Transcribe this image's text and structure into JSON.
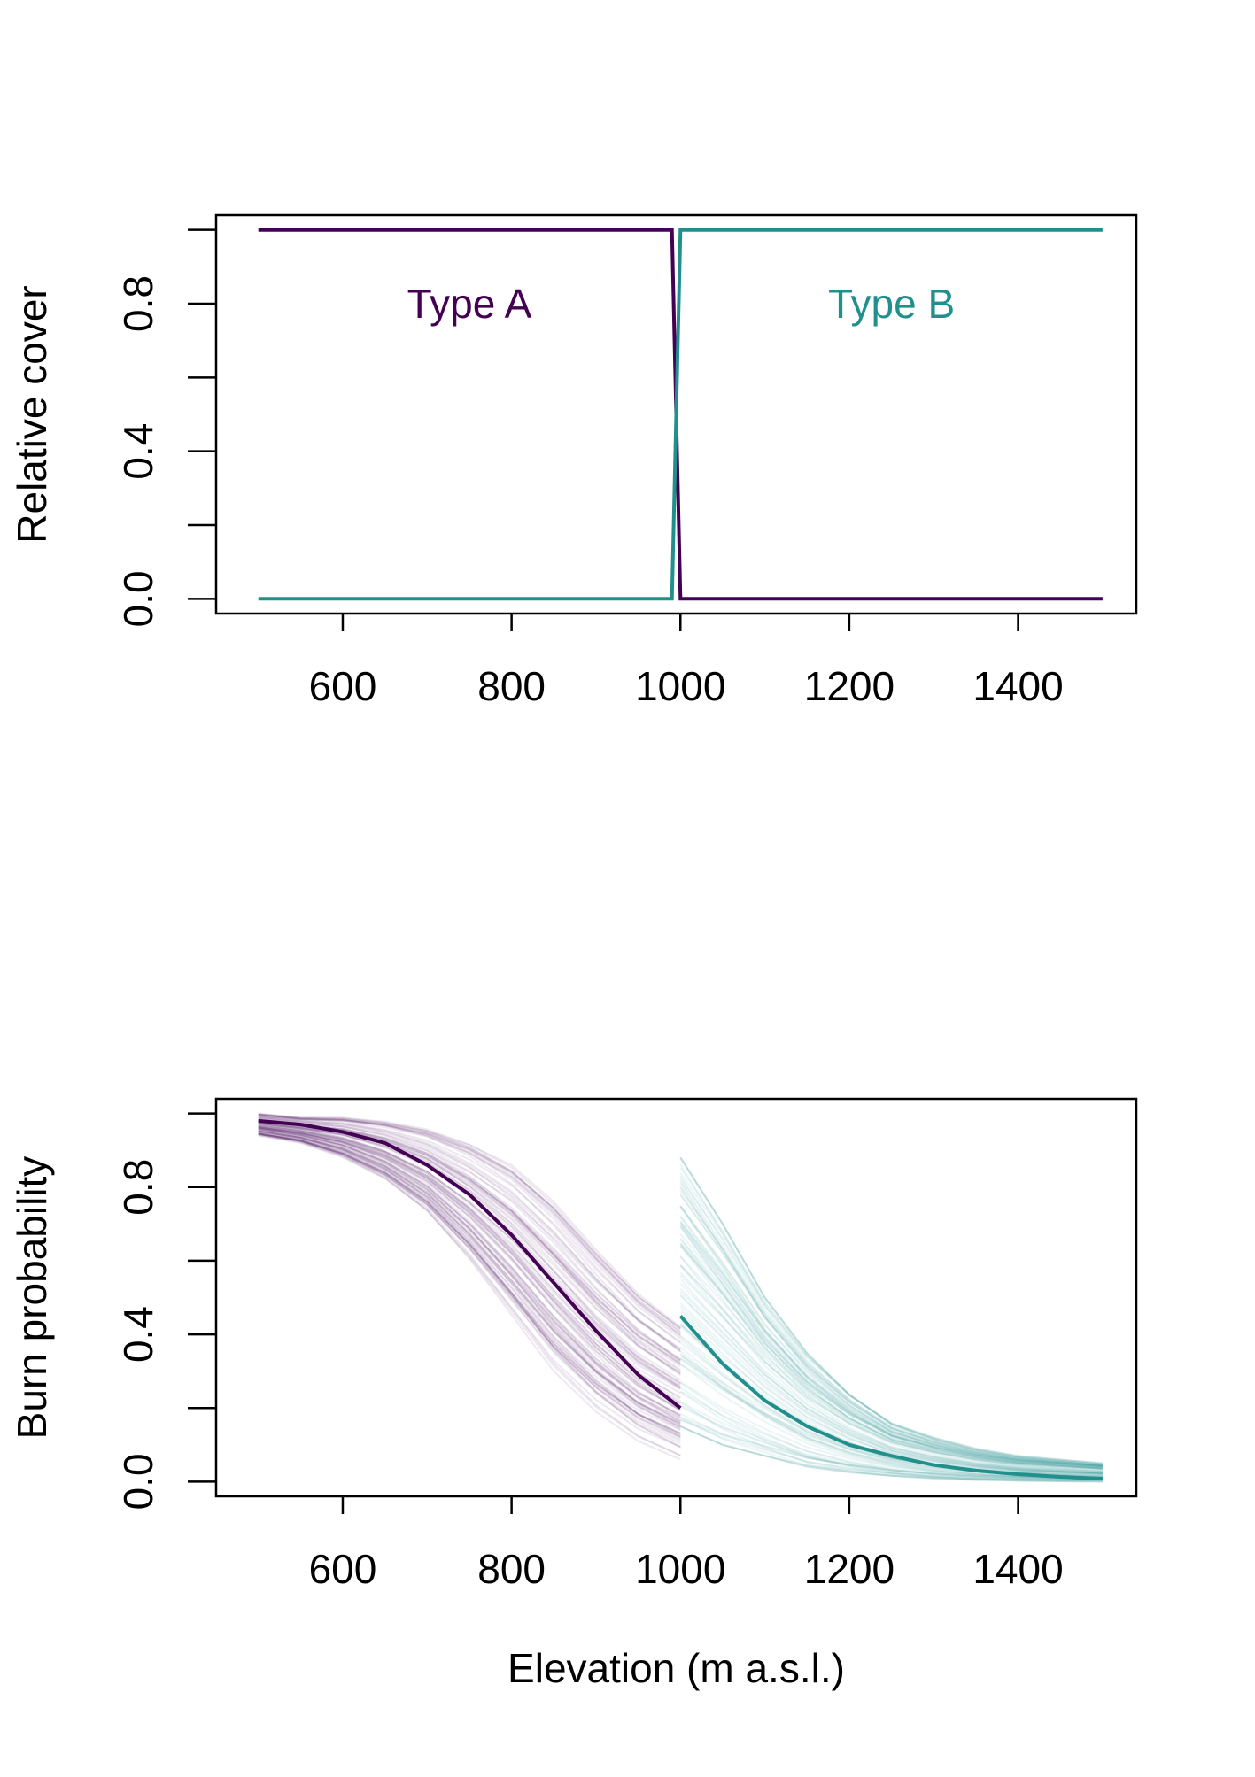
{
  "colors": {
    "type_a": "#440154",
    "type_b": "#21908C",
    "axis": "#000000"
  },
  "chart_data": [
    {
      "type": "line",
      "xlabel": "",
      "ylabel": "Relative cover",
      "xlim": [
        450,
        1540
      ],
      "ylim": [
        -0.04,
        1.04
      ],
      "xticks": [
        600,
        800,
        1000,
        1200,
        1400
      ],
      "xtick_labels": [
        "600",
        "800",
        "1000",
        "1200",
        "1400"
      ],
      "yticks": [
        0.0,
        0.2,
        0.4,
        0.6,
        0.8,
        1.0
      ],
      "ytick_labels": [
        "0.0",
        "",
        "0.4",
        "",
        "0.8",
        ""
      ],
      "grid": false,
      "series": [
        {
          "name": "Type A",
          "color": "#440154",
          "x": [
            500,
            990,
            1000,
            1500
          ],
          "y": [
            1.0,
            1.0,
            0.0,
            0.0
          ]
        },
        {
          "name": "Type B",
          "color": "#21908C",
          "x": [
            500,
            990,
            1000,
            1500
          ],
          "y": [
            0.0,
            0.0,
            1.0,
            1.0
          ]
        }
      ],
      "annotations": [
        {
          "text": "Type A",
          "x": 750,
          "y": 0.8,
          "color": "#440154"
        },
        {
          "text": "Type B",
          "x": 1250,
          "y": 0.8,
          "color": "#21908C"
        }
      ]
    },
    {
      "type": "line",
      "xlabel": "Elevation (m a.s.l.)",
      "ylabel": "Burn probability",
      "xlim": [
        450,
        1540
      ],
      "ylim": [
        -0.04,
        1.04
      ],
      "xticks": [
        600,
        800,
        1000,
        1200,
        1400
      ],
      "xtick_labels": [
        "600",
        "800",
        "1000",
        "1200",
        "1400"
      ],
      "yticks": [
        0.0,
        0.2,
        0.4,
        0.6,
        0.8,
        1.0
      ],
      "ytick_labels": [
        "0.0",
        "",
        "0.4",
        "",
        "0.8",
        ""
      ],
      "grid": false,
      "series": [
        {
          "color": "#440154",
          "x": [
            500,
            550,
            600,
            650,
            700,
            750,
            800,
            850,
            900,
            950,
            1000
          ],
          "y": [
            0.98,
            0.97,
            0.95,
            0.92,
            0.86,
            0.78,
            0.67,
            0.54,
            0.41,
            0.29,
            0.2
          ],
          "band_lower": [
            0.94,
            0.92,
            0.88,
            0.82,
            0.73,
            0.6,
            0.45,
            0.3,
            0.19,
            0.11,
            0.06
          ],
          "band_upper": [
            1.0,
            0.99,
            0.99,
            0.98,
            0.96,
            0.92,
            0.86,
            0.76,
            0.63,
            0.51,
            0.42
          ]
        },
        {
          "color": "#21908C",
          "x": [
            1000,
            1050,
            1100,
            1150,
            1200,
            1250,
            1300,
            1350,
            1400,
            1450,
            1500
          ],
          "y": [
            0.45,
            0.32,
            0.22,
            0.15,
            0.1,
            0.07,
            0.045,
            0.03,
            0.02,
            0.013,
            0.008
          ],
          "band_lower": [
            0.15,
            0.1,
            0.07,
            0.04,
            0.025,
            0.015,
            0.008,
            0.004,
            0.002,
            0.001,
            0.0
          ],
          "band_upper": [
            0.88,
            0.7,
            0.5,
            0.35,
            0.24,
            0.16,
            0.12,
            0.09,
            0.07,
            0.06,
            0.05
          ]
        }
      ]
    }
  ]
}
